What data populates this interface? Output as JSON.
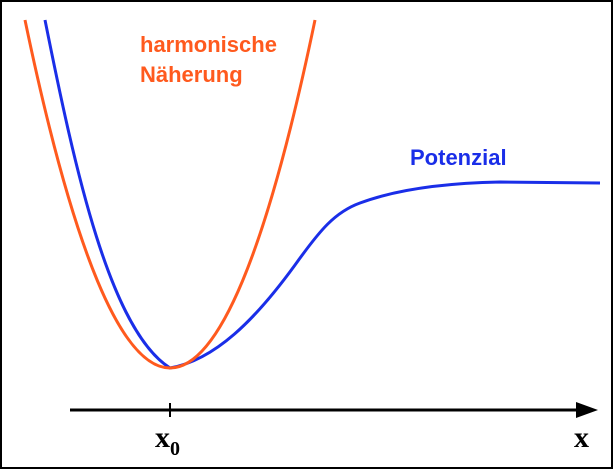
{
  "annotations": {
    "harmonic_line1": "harmonische",
    "harmonic_line2": "Näherung",
    "potential": "Potenzial"
  },
  "axis": {
    "origin_label": "x",
    "origin_subscript": "0",
    "axis_label": "x"
  }
}
